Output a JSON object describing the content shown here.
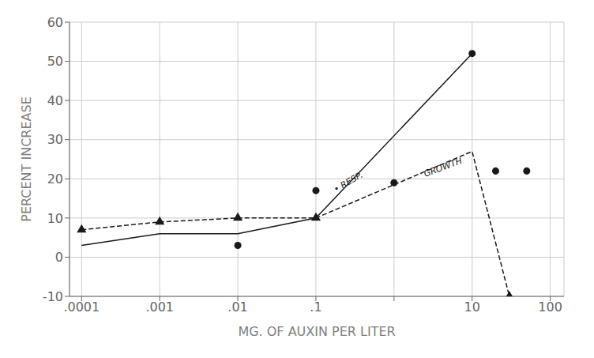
{
  "chart_data": {
    "type": "line",
    "xlabel": "MG. OF AUXIN PER LITER",
    "ylabel": "PERCENT INCREASE",
    "log": "x",
    "grid": true,
    "xlim": [
      7e-05,
      150
    ],
    "xticks": [
      {
        "value": 0.0001,
        "label": ".0001"
      },
      {
        "value": 0.001,
        "label": ".001"
      },
      {
        "value": 0.01,
        "label": ".01"
      },
      {
        "value": 0.1,
        "label": ".1"
      },
      {
        "value": 1,
        "label": ""
      },
      10,
      100
    ],
    "ylim": [
      -10,
      60
    ],
    "yticks": [
      -10,
      0,
      10,
      20,
      30,
      40,
      50,
      60
    ],
    "series": [
      {
        "type": "line",
        "line_style": "solid",
        "color": "#1a1a1a",
        "x": [
          0.0001,
          0.001,
          0.01,
          0.1,
          10
        ],
        "values": [
          3,
          6,
          6,
          10,
          52
        ]
      },
      {
        "type": "line",
        "line_style": "dashed",
        "color": "#1a1a1a",
        "x": [
          0.0001,
          0.001,
          0.01,
          0.1,
          10,
          30
        ],
        "values": [
          7,
          9,
          10,
          10,
          27,
          -10
        ]
      },
      {
        "type": "scatter",
        "marker": "circle",
        "color": "#1a1a1a",
        "x": [
          0.1,
          1,
          10
        ],
        "values": [
          17,
          19,
          52
        ]
      },
      {
        "type": "scatter",
        "marker": "circle",
        "color": "#1a1a1a",
        "x": [
          0.01,
          20,
          50
        ],
        "values": [
          3,
          22,
          22
        ]
      },
      {
        "type": "scatter",
        "marker": "triangle",
        "color": "#1a1a1a",
        "x": [
          0.0001,
          0.001,
          0.01,
          0.1,
          30
        ],
        "values": [
          7,
          9,
          10,
          10,
          -10
        ]
      }
    ],
    "annotations": [
      {
        "text": "• RESP.",
        "x": 0.18,
        "y": 16.5
      },
      {
        "text": "GROWTH",
        "x": 2.5,
        "y": 20.5
      }
    ]
  }
}
